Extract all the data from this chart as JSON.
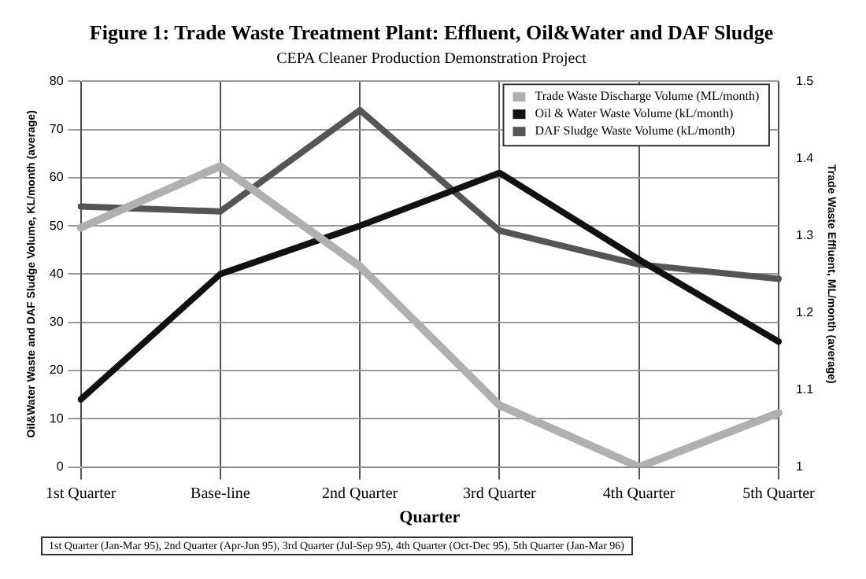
{
  "chart_data": {
    "type": "line",
    "title": "Figure 1: Trade Waste Treatment Plant: Effluent, Oil&Water and DAF Sludge",
    "subtitle": "CEPA Cleaner Production Demonstration Project",
    "xlabel": "Quarter",
    "ylabel": "Oil&Water Waste and DAF Sludge Volume, KL/month (average)",
    "y2label": "Trade Waste Effluent, ML/month (average)",
    "categories": [
      "1st Quarter",
      "Base-line",
      "2nd Quarter",
      "3rd Quarter",
      "4th Quarter",
      "5th Quarter"
    ],
    "series": [
      {
        "name": "Trade Waste Discharge Volume (ML/month)",
        "color": "#b0b0b0",
        "axis": "y2",
        "values": [
          1.31,
          1.39,
          1.26,
          1.08,
          1.0,
          1.07
        ]
      },
      {
        "name": "Oil & Water Waste Volume (kL/month)",
        "color": "#111111",
        "values": [
          14,
          40,
          50,
          61,
          43,
          26
        ]
      },
      {
        "name": "DAF Sludge Waste Volume (kL/month)",
        "color": "#555555",
        "values": [
          54,
          53,
          74,
          49,
          42,
          39
        ]
      }
    ],
    "ylim": [
      0,
      80
    ],
    "yticks": [
      0,
      10,
      20,
      30,
      40,
      50,
      60,
      70,
      80
    ],
    "y2lim": [
      1,
      1.5
    ],
    "y2ticks": [
      1,
      1.1,
      1.2,
      1.3,
      1.4,
      1.5
    ],
    "grid": true,
    "legend": "top right",
    "marker": "none",
    "line_style": "solid",
    "annotations": [
      "1st Quarter (Jan-Mar 95), 2nd Quarter (Apr-Jun 95), 3rd Quarter (Jul-Sep 95), 4th Quarter (Oct-Dec 95), 5th Quarter (Jan-Mar 96)"
    ]
  }
}
